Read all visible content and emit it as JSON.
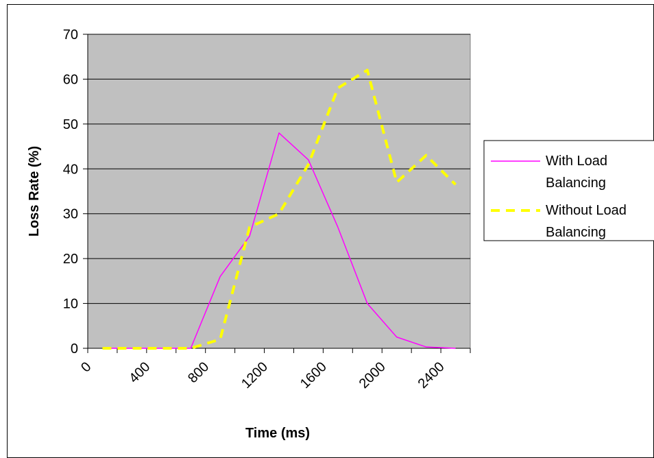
{
  "chart_data": {
    "type": "line",
    "xlabel": "Time (ms)",
    "ylabel": "Loss Rate (%)",
    "x_ticks": [
      "0",
      "400",
      "800",
      "1200",
      "1600",
      "2000",
      "2400"
    ],
    "y_ticks": [
      "0",
      "10",
      "20",
      "30",
      "40",
      "50",
      "60",
      "70"
    ],
    "xlim": [
      0,
      2600
    ],
    "ylim": [
      0,
      70
    ],
    "grid": "horizontal",
    "legend_position": "right",
    "plot_background": "#c0c0c0",
    "series": [
      {
        "name": "With Load Balancing",
        "label_lines": [
          "With Load",
          "Balancing"
        ],
        "color": "#ff00ff",
        "style": "solid",
        "x": [
          100,
          300,
          500,
          700,
          900,
          1100,
          1300,
          1500,
          1700,
          1900,
          2100,
          2300,
          2500
        ],
        "y": [
          0,
          0,
          0,
          0,
          16,
          25,
          48,
          42,
          27,
          10,
          2.5,
          0.3,
          0
        ]
      },
      {
        "name": "Without Load Balancing",
        "label_lines": [
          "Without Load",
          "Balancing"
        ],
        "color": "#ffff00",
        "style": "dashed",
        "x": [
          100,
          300,
          500,
          700,
          900,
          1100,
          1300,
          1500,
          1700,
          1900,
          2100,
          2300,
          2500
        ],
        "y": [
          0,
          0,
          0,
          0,
          2,
          27,
          30,
          41,
          58,
          62,
          37,
          43,
          36.5
        ]
      }
    ]
  }
}
